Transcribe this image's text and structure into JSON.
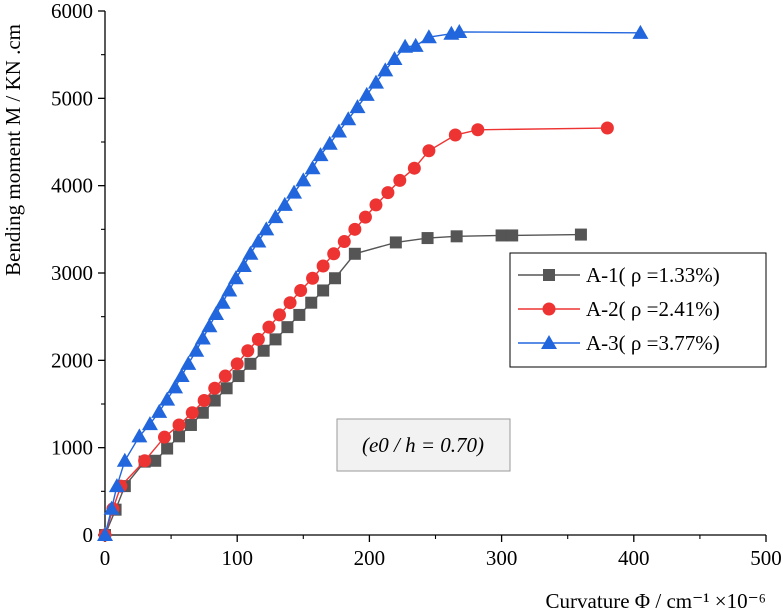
{
  "chart_data": {
    "type": "line",
    "title": "",
    "xlabel": "Curvature Φ / cm⁻¹ ×10⁻⁶",
    "ylabel": "Bending moment M / KN .cm",
    "xlim": [
      0,
      500
    ],
    "ylim": [
      0,
      6000
    ],
    "xticks": [
      0,
      100,
      200,
      300,
      400,
      500
    ],
    "yticks": [
      0,
      1000,
      2000,
      3000,
      4000,
      5000,
      6000
    ],
    "grid": false,
    "legend_position": "right-middle",
    "annotation": "(e0 / h = 0.70)",
    "series": [
      {
        "name": "A-1( ρ =1.33%)",
        "color": "#555555",
        "marker": "square",
        "x": [
          0,
          8,
          15,
          30,
          38,
          47,
          56,
          65,
          74,
          83,
          92,
          101,
          110,
          120,
          129,
          138,
          147,
          156,
          165,
          174,
          189,
          220,
          244,
          266,
          300,
          308,
          360
        ],
        "y": [
          0,
          290,
          560,
          840,
          850,
          990,
          1130,
          1260,
          1400,
          1540,
          1680,
          1820,
          1960,
          2110,
          2240,
          2380,
          2520,
          2660,
          2800,
          2940,
          3220,
          3350,
          3400,
          3420,
          3430,
          3430,
          3440
        ]
      },
      {
        "name": "A-2( ρ =2.41%)",
        "color": "#ee3333",
        "marker": "circle",
        "x": [
          0,
          6,
          12,
          30,
          45,
          56,
          66,
          75,
          83,
          91,
          100,
          108,
          116,
          124,
          132,
          140,
          148,
          157,
          165,
          173,
          181,
          189,
          197,
          205,
          214,
          223,
          234,
          245,
          265,
          282,
          380
        ],
        "y": [
          0,
          300,
          560,
          850,
          1120,
          1260,
          1400,
          1540,
          1680,
          1820,
          1960,
          2110,
          2240,
          2380,
          2520,
          2660,
          2800,
          2940,
          3080,
          3220,
          3360,
          3500,
          3640,
          3780,
          3920,
          4060,
          4200,
          4400,
          4580,
          4640,
          4660
        ]
      },
      {
        "name": "A-3( ρ =3.77%)",
        "color": "#2266dd",
        "marker": "triangle",
        "x": [
          0,
          5,
          9,
          15,
          26,
          34,
          41,
          47,
          53,
          58,
          63,
          69,
          74,
          79,
          84,
          89,
          94,
          99,
          105,
          110,
          116,
          122,
          129,
          136,
          143,
          150,
          157,
          163,
          170,
          177,
          184,
          191,
          198,
          205,
          212,
          219,
          227,
          235,
          245,
          262,
          268,
          405
        ],
        "y": [
          0,
          300,
          560,
          850,
          1130,
          1270,
          1410,
          1550,
          1690,
          1820,
          1960,
          2110,
          2250,
          2390,
          2530,
          2660,
          2800,
          2940,
          3080,
          3220,
          3360,
          3500,
          3640,
          3780,
          3920,
          4060,
          4200,
          4350,
          4480,
          4620,
          4760,
          4900,
          5040,
          5180,
          5320,
          5450,
          5590,
          5600,
          5700,
          5740,
          5760,
          5750
        ]
      }
    ]
  }
}
